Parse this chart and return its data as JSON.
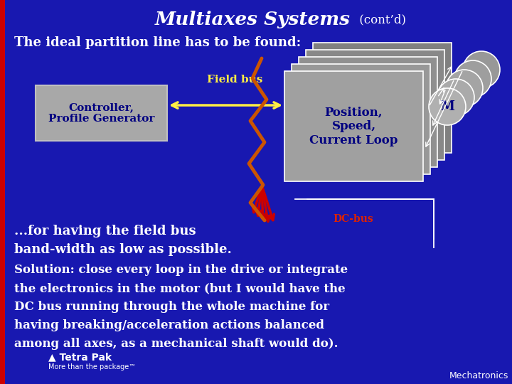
{
  "bg_color": "#1818b0",
  "title_main": "Multiaxes Systems",
  "title_cont": " (cont’d)",
  "subtitle": "The ideal partition line has to be found:",
  "controller_label": "Controller,\nProfile Generator",
  "fieldbus_label": "Field bus",
  "position_label": "Position,\nSpeed,\nCurrent Loop",
  "motor_label": "M",
  "dcbus_label": "DC-bus",
  "text_line1": "...for having the field bus",
  "text_line2": "band-width as low as possible.",
  "text_solution": "Solution: close every loop in the drive or integrate\nthe electronics in the motor (but I would have the\nDC bus running through the whole machine for\nhaving breaking/acceleration actions balanced\namong all axes, as a mechanical shaft would do).",
  "gray_box_color": "#a0a0a0",
  "white": "#ffffff",
  "yellow": "#ffee44",
  "orange": "#cc5500",
  "red": "#cc0000",
  "text_blue": "#000080",
  "tetra_pak": "Tetra Pak",
  "tetra_pak_sub": "More than the package™",
  "mechatronics": "Mechatronics"
}
